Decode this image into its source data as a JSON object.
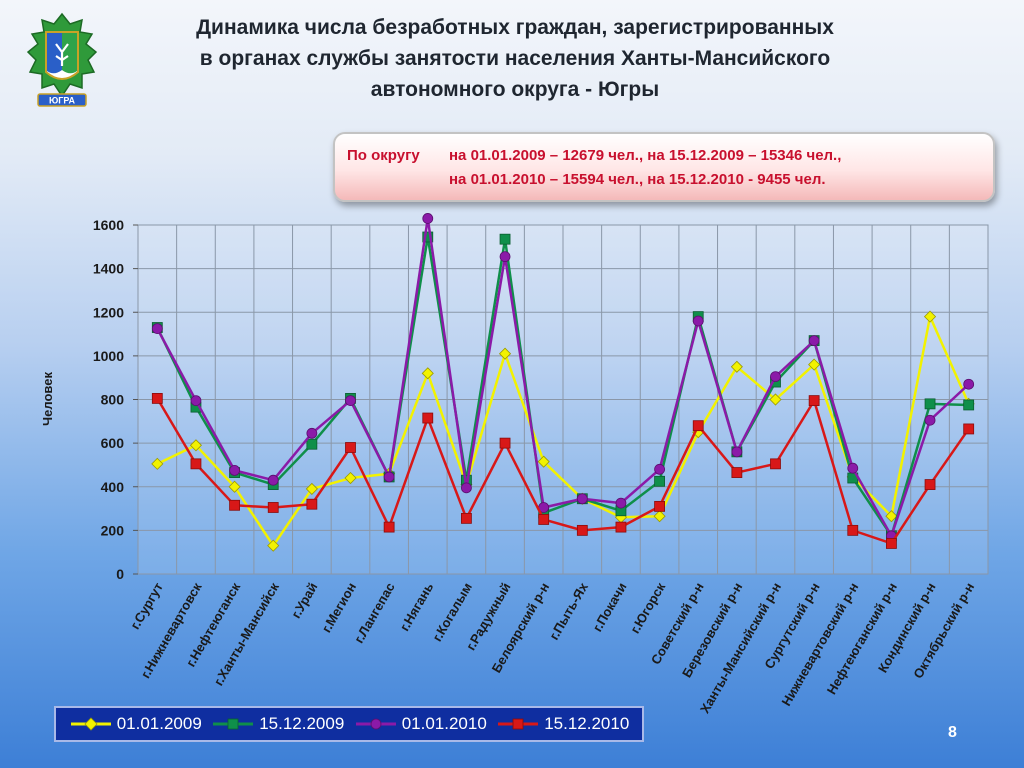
{
  "title_lines": [
    "Динамика числа безработных граждан, зарегистрированных",
    "в органах службы занятости населения Ханты-Мансийского",
    "автономного округа - Югры"
  ],
  "summary": {
    "label": "По округу",
    "line1": "на 01.01.2009 – 12679 чел., на 15.12.2009 – 15346 чел.,",
    "line2": "на 01.01.2010 – 15594 чел., на 15.12.2010  - 9455 чел."
  },
  "emblem_label": "ЮГРА",
  "page_number": "8",
  "chart_data": {
    "type": "line",
    "ylabel": "Человек",
    "xlabel": "",
    "ylim": [
      0,
      1600
    ],
    "yticks": [
      0,
      200,
      400,
      600,
      800,
      1000,
      1200,
      1400,
      1600
    ],
    "grid": true,
    "legend": "bottom",
    "categories": [
      "г.Сургут",
      "г.Нижневартовск",
      "г.Нефтеюганск",
      "г.Ханты-Мансийск",
      "г.Урай",
      "г.Мегион",
      "г.Лангепас",
      "г.Нягань",
      "г.Когалым",
      "г.Радужный",
      "Белоярский р-н",
      "г.Пыть-Ях",
      "г.Покачи",
      "г.Югорск",
      "Советский р-н",
      "Березовский р-н",
      "Ханты-Мансийский р-н",
      "Сургутский р-н",
      "Нижневартовский р-н",
      "Нефтеюганский р-н",
      "Кондинский р-н",
      "Октябрьский р-н"
    ],
    "series": [
      {
        "name": "01.01.2009",
        "color": "#f2f200",
        "marker": "diamond",
        "values": [
          505,
          590,
          400,
          130,
          390,
          440,
          460,
          920,
          410,
          1010,
          515,
          345,
          260,
          265,
          650,
          950,
          800,
          960,
          445,
          265,
          1180,
          780
        ]
      },
      {
        "name": "15.12.2009",
        "color": "#0f8f4a",
        "marker": "square",
        "values": [
          1130,
          765,
          465,
          410,
          595,
          805,
          445,
          1545,
          430,
          1535,
          280,
          345,
          290,
          425,
          1180,
          560,
          880,
          1070,
          440,
          175,
          780,
          775
        ]
      },
      {
        "name": "01.01.2010",
        "color": "#8b1aa8",
        "marker": "circle",
        "values": [
          1125,
          795,
          475,
          430,
          645,
          795,
          445,
          1630,
          395,
          1455,
          305,
          345,
          325,
          480,
          1160,
          560,
          905,
          1070,
          485,
          175,
          705,
          870
        ]
      },
      {
        "name": "15.12.2010",
        "color": "#d81818",
        "marker": "square",
        "values": [
          805,
          505,
          315,
          305,
          320,
          580,
          215,
          715,
          255,
          600,
          250,
          200,
          215,
          310,
          680,
          465,
          505,
          795,
          200,
          140,
          410,
          665
        ]
      }
    ]
  }
}
